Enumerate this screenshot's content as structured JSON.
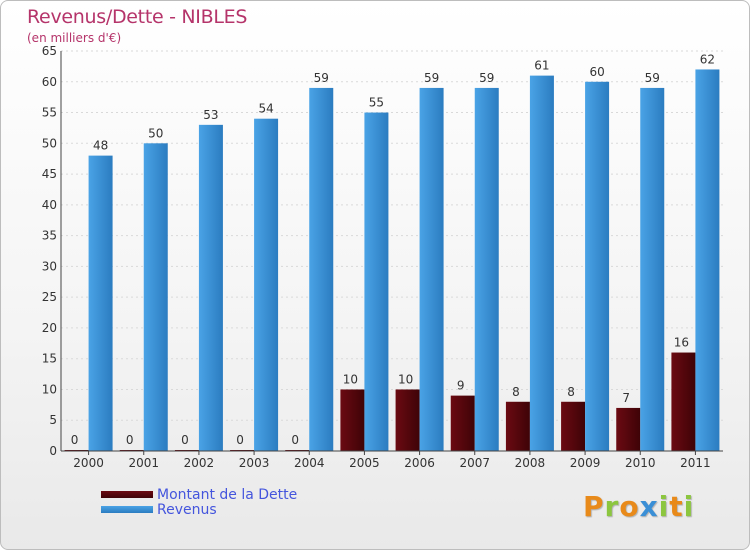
{
  "chart_data": {
    "type": "bar",
    "title": "Revenus/Dette - NIBLES",
    "subtitle": "(en milliers d'€)",
    "categories": [
      "2000",
      "2001",
      "2002",
      "2003",
      "2004",
      "2005",
      "2006",
      "2007",
      "2008",
      "2009",
      "2010",
      "2011"
    ],
    "series": [
      {
        "name": "Montant de la Dette",
        "values": [
          0,
          0,
          0,
          0,
          0,
          10,
          10,
          9,
          8,
          8,
          7,
          16
        ],
        "color": "#6b0a12"
      },
      {
        "name": "Revenus",
        "values": [
          48,
          50,
          53,
          54,
          59,
          55,
          59,
          59,
          61,
          60,
          59,
          62
        ],
        "color": "#4aa3e6"
      }
    ],
    "ylim": [
      0,
      65
    ],
    "yticks": [
      0,
      5,
      10,
      15,
      20,
      25,
      30,
      35,
      40,
      45,
      50,
      55,
      60,
      65
    ],
    "grid": true,
    "legend_position": "bottom-left"
  },
  "brand": {
    "letters": [
      "P",
      "r",
      "o",
      "x",
      "i",
      "t",
      "i"
    ],
    "colors": [
      "#e88a1a",
      "#8cc63f",
      "#e88a1a",
      "#3a8fd6",
      "#8cc63f",
      "#e88a1a",
      "#8cc63f"
    ]
  }
}
